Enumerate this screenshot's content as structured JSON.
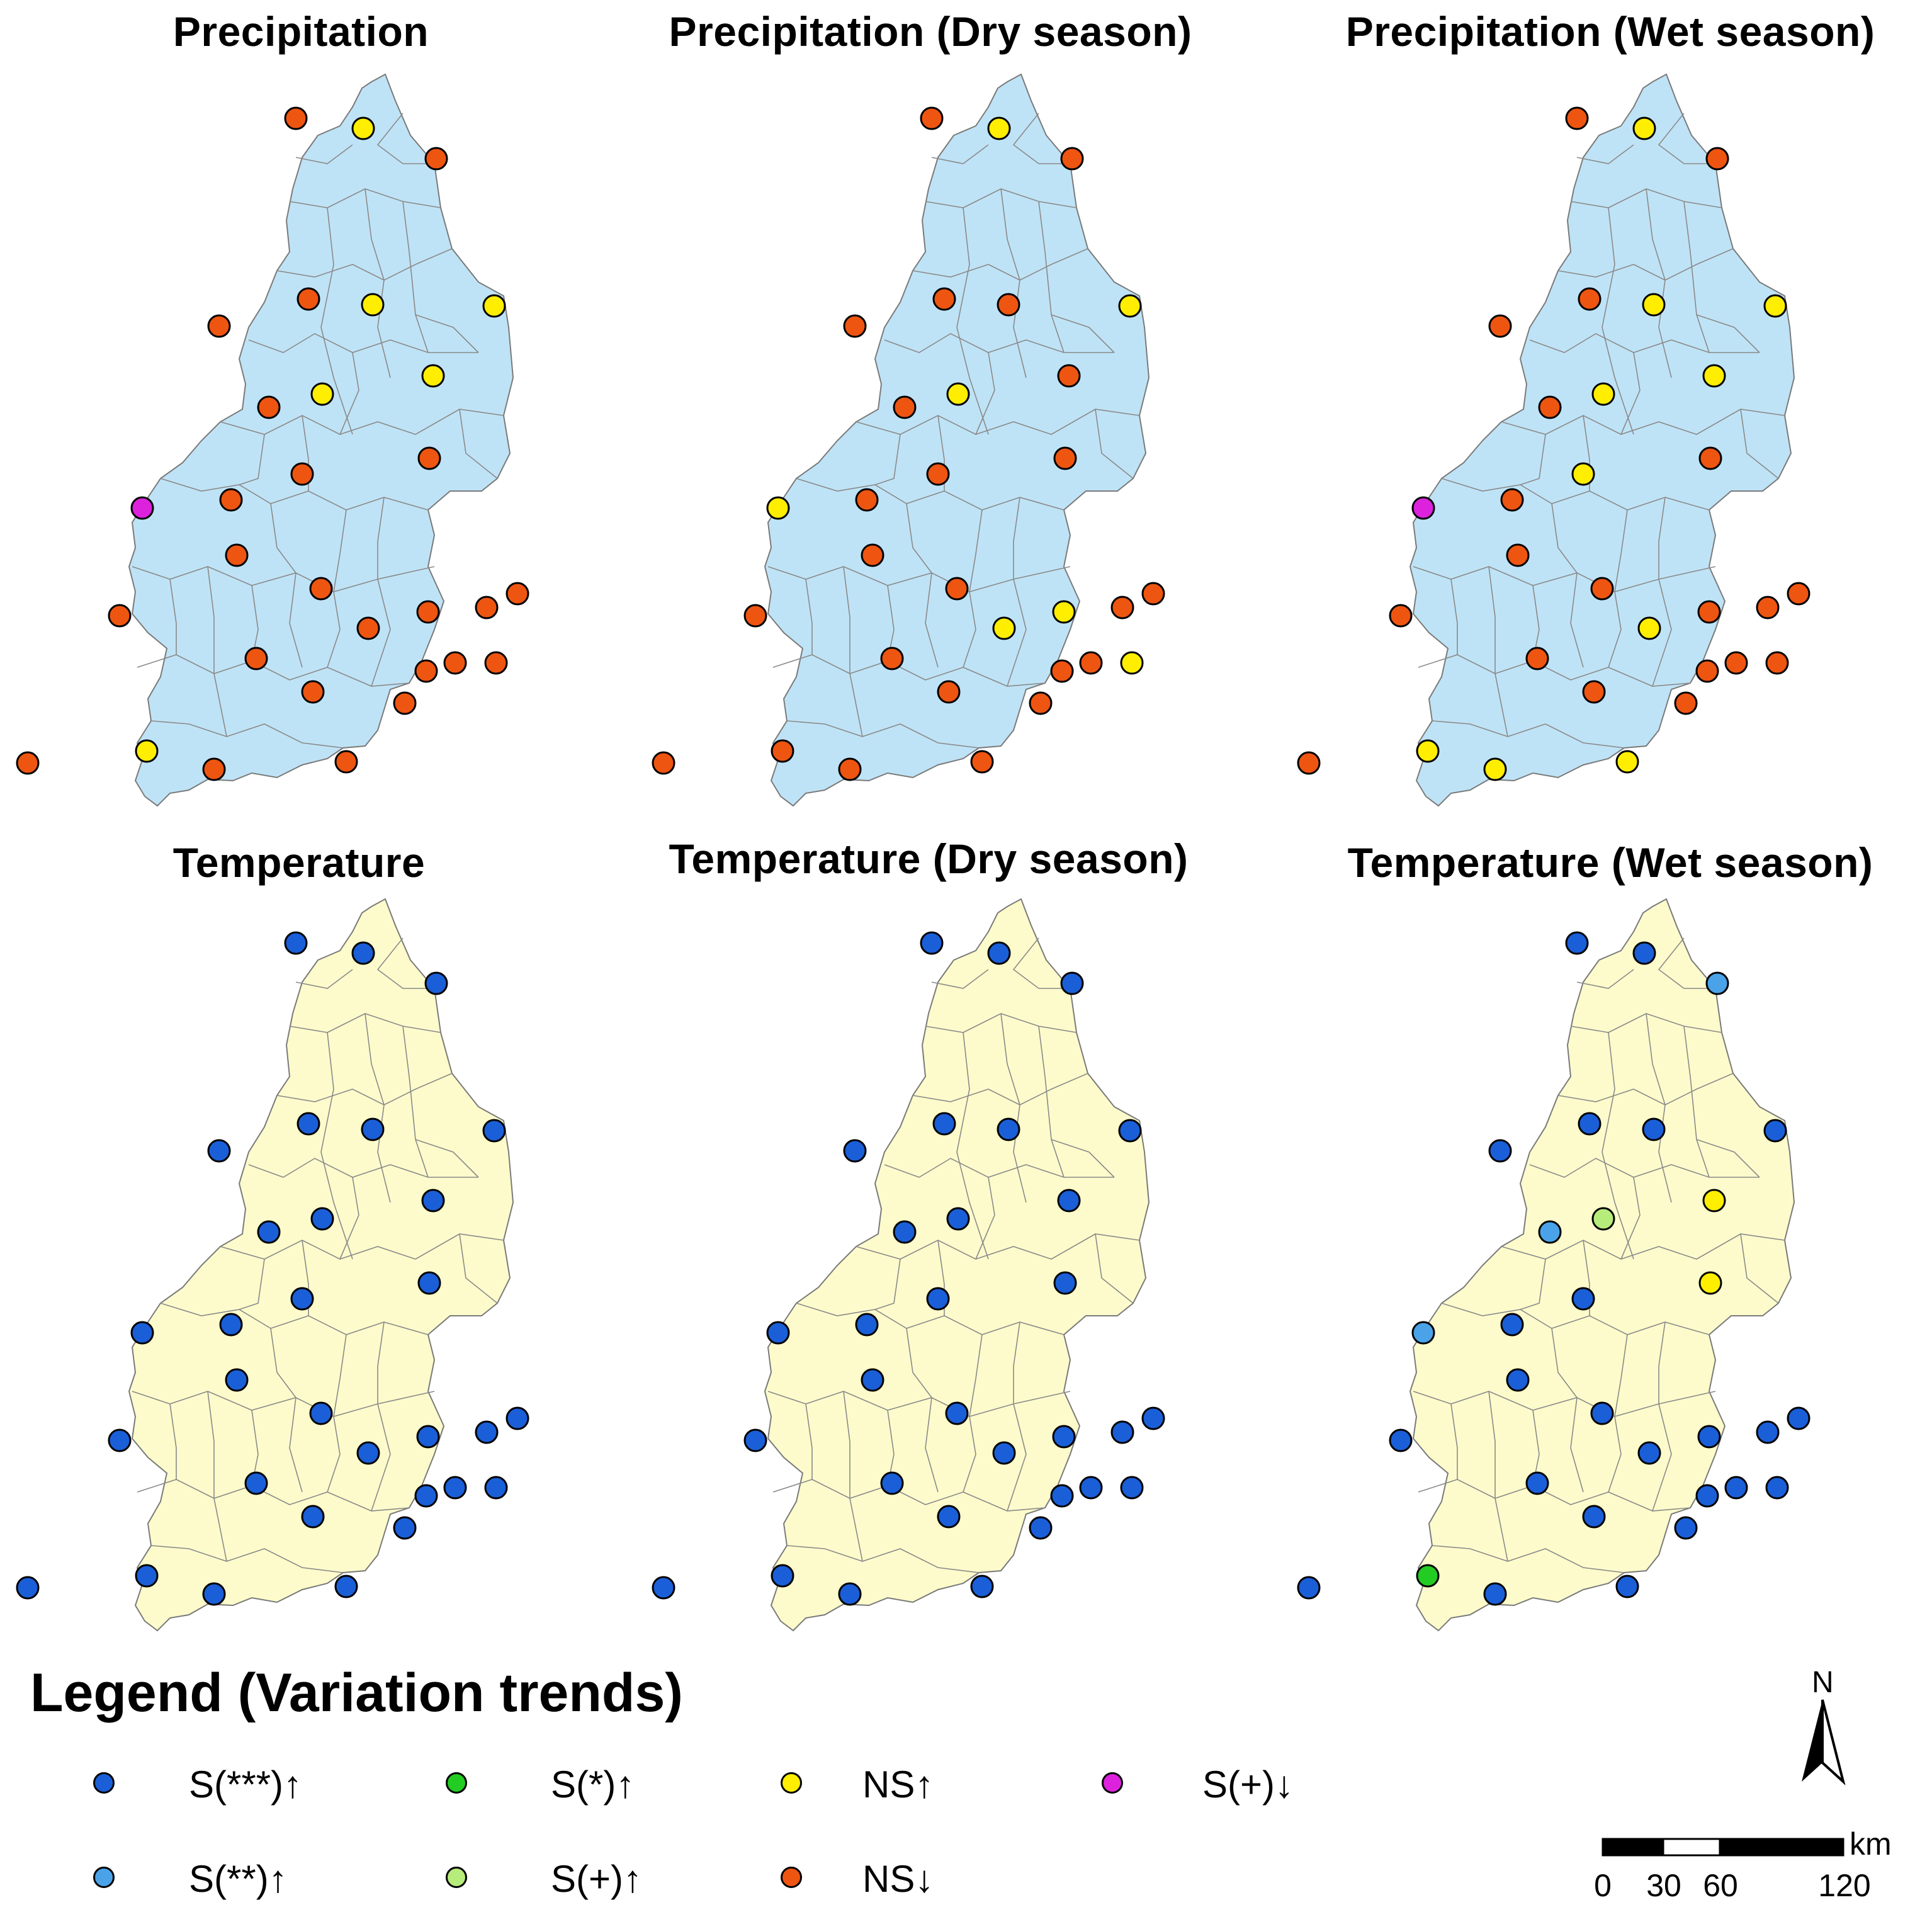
{
  "panels": [
    {
      "title": "Precipitation",
      "region_fill": "#bfe3f6",
      "stations": [
        "NS_down",
        "NS_up",
        "NS_down",
        "NS_down",
        "NS_up",
        "NS_up",
        "NS_down",
        "NS_up",
        "NS_up",
        "NS_down",
        "NS_down",
        "NS_down",
        "S_plus_down",
        "NS_down",
        "NS_down",
        "NS_down",
        "NS_down",
        "NS_down",
        "NS_down",
        "NS_down",
        "NS_down",
        "NS_down",
        "NS_down",
        "NS_down",
        "NS_down",
        "NS_down",
        "NS_down",
        "NS_up",
        "NS_down",
        "NS_down",
        "NS_down"
      ]
    },
    {
      "title": "Precipitation (Dry season)",
      "region_fill": "#bfe3f6",
      "stations": [
        "NS_down",
        "NS_up",
        "NS_down",
        "NS_down",
        "NS_down",
        "NS_up",
        "NS_down",
        "NS_up",
        "NS_down",
        "NS_down",
        "NS_down",
        "NS_down",
        "NS_up",
        "NS_down",
        "NS_down",
        "NS_down",
        "NS_up",
        "NS_down",
        "NS_up",
        "NS_down",
        "NS_down",
        "NS_down",
        "NS_down",
        "NS_down",
        "NS_down",
        "NS_up",
        "NS_down",
        "NS_down",
        "NS_down",
        "NS_down",
        "NS_down"
      ]
    },
    {
      "title": "Precipitation (Wet season)",
      "region_fill": "#bfe3f6",
      "stations": [
        "NS_down",
        "NS_up",
        "NS_down",
        "NS_down",
        "NS_up",
        "NS_up",
        "NS_down",
        "NS_up",
        "NS_up",
        "NS_down",
        "NS_up",
        "NS_down",
        "S_plus_down",
        "NS_down",
        "NS_down",
        "NS_down",
        "NS_down",
        "NS_down",
        "NS_up",
        "NS_down",
        "NS_down",
        "NS_down",
        "NS_down",
        "NS_down",
        "NS_down",
        "NS_down",
        "NS_down",
        "NS_up",
        "NS_up",
        "NS_up",
        "NS_down"
      ]
    },
    {
      "title": "Temperature",
      "region_fill": "#fdfbcb",
      "stations": [
        "S3_up",
        "S3_up",
        "S3_up",
        "S3_up",
        "S3_up",
        "S3_up",
        "S3_up",
        "S3_up",
        "S3_up",
        "S3_up",
        "S3_up",
        "S3_up",
        "S3_up",
        "S3_up",
        "S3_up",
        "S3_up",
        "S3_up",
        "S3_up",
        "S3_up",
        "S3_up",
        "S3_up",
        "S3_up",
        "S3_up",
        "S3_up",
        "S3_up",
        "S3_up",
        "S3_up",
        "S3_up",
        "S3_up",
        "S3_up",
        "S3_up"
      ]
    },
    {
      "title": "Temperature (Dry season)",
      "region_fill": "#fdfbcb",
      "stations": [
        "S3_up",
        "S3_up",
        "S3_up",
        "S3_up",
        "S3_up",
        "S3_up",
        "S3_up",
        "S3_up",
        "S3_up",
        "S3_up",
        "S3_up",
        "S3_up",
        "S3_up",
        "S3_up",
        "S3_up",
        "S3_up",
        "S3_up",
        "S3_up",
        "S3_up",
        "S3_up",
        "S3_up",
        "S3_up",
        "S3_up",
        "S3_up",
        "S3_up",
        "S3_up",
        "S3_up",
        "S3_up",
        "S3_up",
        "S3_up",
        "S3_up"
      ]
    },
    {
      "title": "Temperature (Wet season)",
      "region_fill": "#fdfbcb",
      "stations": [
        "S3_up",
        "S3_up",
        "S2_up",
        "S3_up",
        "S3_up",
        "S3_up",
        "S3_up",
        "S_plus_up",
        "NS_up",
        "S2_up",
        "S3_up",
        "NS_up",
        "S2_up",
        "S3_up",
        "S3_up",
        "S3_up",
        "S3_up",
        "S3_up",
        "S3_up",
        "S3_up",
        "S3_up",
        "S3_up",
        "S3_up",
        "S3_up",
        "S3_up",
        "S3_up",
        "S3_up",
        "S1_up",
        "S3_up",
        "S3_up",
        "S3_up"
      ]
    }
  ],
  "legend": {
    "title": "Legend (Variation trends)",
    "items": [
      {
        "key": "S3_up",
        "label": "S(***)↑",
        "color": "#1a5fd8"
      },
      {
        "key": "S1_up",
        "label": "S(*)↑",
        "color": "#22cc22"
      },
      {
        "key": "NS_up",
        "label": "NS↑",
        "color": "#ffee00"
      },
      {
        "key": "S_plus_down",
        "label": "S(+)↓",
        "color": "#dd22dd"
      },
      {
        "key": "S2_up",
        "label": "S(**)↑",
        "color": "#4aa3e8"
      },
      {
        "key": "S_plus_up",
        "label": "S(+)↑",
        "color": "#b6ec7a"
      },
      {
        "key": "NS_down",
        "label": "NS↓",
        "color": "#ee5511"
      }
    ]
  },
  "north_arrow": {
    "label": "N"
  },
  "scale_bar": {
    "unit": "km",
    "ticks": [
      "0",
      "30",
      "60",
      "120"
    ]
  }
}
